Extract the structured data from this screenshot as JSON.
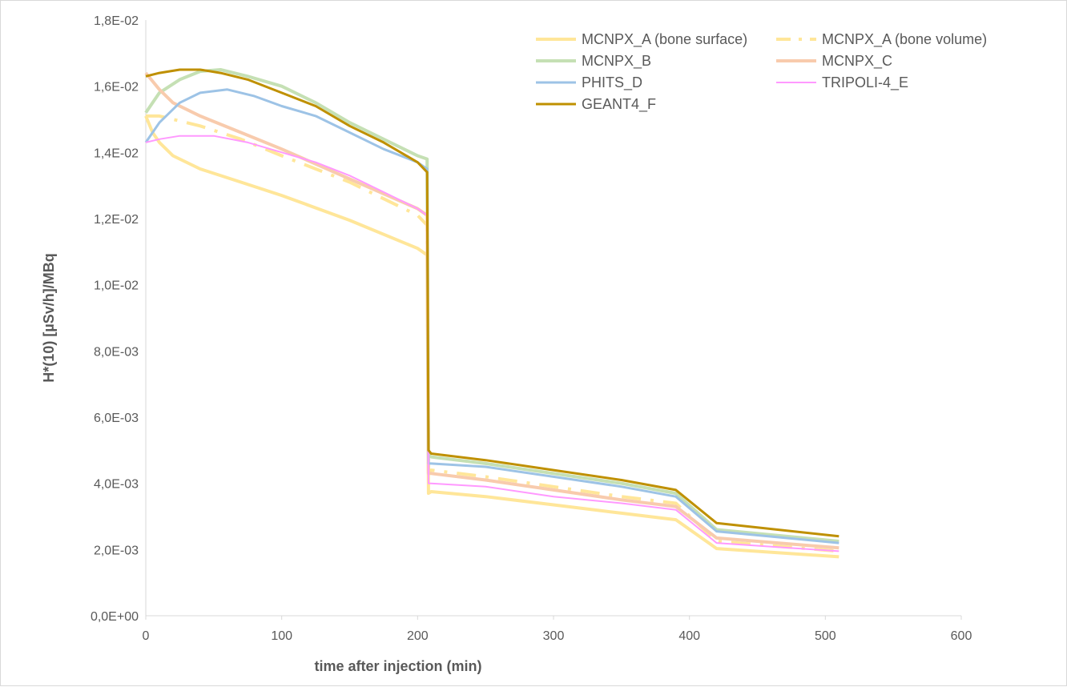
{
  "chart_data": {
    "type": "line",
    "xlabel": "time after injection (min)",
    "ylabel": "H*(10)  [µSv/h]/MBq",
    "xlim": [
      0,
      600
    ],
    "ylim": [
      0,
      0.018
    ],
    "x_ticks": [
      0,
      100,
      200,
      300,
      400,
      500,
      600
    ],
    "x_tick_labels": [
      "0",
      "100",
      "200",
      "300",
      "400",
      "500",
      "600"
    ],
    "y_ticks": [
      0,
      0.002,
      0.004,
      0.006,
      0.008,
      0.01,
      0.012,
      0.014,
      0.016,
      0.018
    ],
    "y_tick_labels": [
      "0,0E+00",
      "2,0E-03",
      "4,0E-03",
      "6,0E-03",
      "8,0E-03",
      "1,0E-02",
      "1,2E-02",
      "1,4E-02",
      "1,6E-02",
      "1,8E-02"
    ],
    "grid": false,
    "legend_position": "top-right",
    "series": [
      {
        "name": "MCNPX_A (bone surface)",
        "color": "#ffe699",
        "dash": "solid",
        "width": 4,
        "points": [
          [
            0,
            0.0151
          ],
          [
            5,
            0.0146
          ],
          [
            10,
            0.0143
          ],
          [
            20,
            0.0139
          ],
          [
            40,
            0.0135
          ],
          [
            70,
            0.0131
          ],
          [
            100,
            0.0127
          ],
          [
            150,
            0.01195
          ],
          [
            200,
            0.0111
          ],
          [
            207,
            0.0109
          ],
          [
            208,
            0.0037
          ],
          [
            210,
            0.00375
          ],
          [
            250,
            0.0036
          ],
          [
            300,
            0.00335
          ],
          [
            350,
            0.0031
          ],
          [
            390,
            0.0029
          ],
          [
            420,
            0.00203
          ],
          [
            510,
            0.00178
          ]
        ]
      },
      {
        "name": "MCNPX_A (bone volume)",
        "color": "#ffe699",
        "dash": "dashdot",
        "width": 4,
        "points": [
          [
            0,
            0.0151
          ],
          [
            10,
            0.0151
          ],
          [
            20,
            0.015
          ],
          [
            40,
            0.0148
          ],
          [
            70,
            0.0144
          ],
          [
            100,
            0.0139
          ],
          [
            150,
            0.0131
          ],
          [
            200,
            0.0121
          ],
          [
            207,
            0.0118
          ],
          [
            208,
            0.0043
          ],
          [
            210,
            0.0044
          ],
          [
            250,
            0.0042
          ],
          [
            300,
            0.0039
          ],
          [
            350,
            0.0036
          ],
          [
            390,
            0.0034
          ],
          [
            420,
            0.00225
          ],
          [
            510,
            0.00195
          ]
        ]
      },
      {
        "name": "MCNPX_B",
        "color": "#c5e0b4",
        "dash": "solid",
        "width": 4,
        "points": [
          [
            0,
            0.0152
          ],
          [
            10,
            0.0158
          ],
          [
            25,
            0.0162
          ],
          [
            40,
            0.01645
          ],
          [
            55,
            0.0165
          ],
          [
            75,
            0.0163
          ],
          [
            100,
            0.016
          ],
          [
            125,
            0.0155
          ],
          [
            150,
            0.0149
          ],
          [
            175,
            0.0144
          ],
          [
            200,
            0.0139
          ],
          [
            207,
            0.0138
          ],
          [
            208,
            0.00485
          ],
          [
            210,
            0.0048
          ],
          [
            250,
            0.0046
          ],
          [
            300,
            0.0043
          ],
          [
            350,
            0.004
          ],
          [
            390,
            0.0037
          ],
          [
            420,
            0.0026
          ],
          [
            510,
            0.00225
          ]
        ]
      },
      {
        "name": "MCNPX_C",
        "color": "#f8cbad",
        "dash": "solid",
        "width": 4,
        "points": [
          [
            0,
            0.0164
          ],
          [
            10,
            0.0159
          ],
          [
            20,
            0.0155
          ],
          [
            40,
            0.0151
          ],
          [
            70,
            0.0146
          ],
          [
            100,
            0.0141
          ],
          [
            150,
            0.0132
          ],
          [
            200,
            0.0123
          ],
          [
            207,
            0.0121
          ],
          [
            208,
            0.0043
          ],
          [
            210,
            0.0043
          ],
          [
            250,
            0.0041
          ],
          [
            300,
            0.0038
          ],
          [
            350,
            0.0035
          ],
          [
            390,
            0.0033
          ],
          [
            420,
            0.00235
          ],
          [
            510,
            0.00205
          ]
        ]
      },
      {
        "name": "PHITS_D",
        "color": "#9dc3e6",
        "dash": "solid",
        "width": 3,
        "points": [
          [
            0,
            0.0143
          ],
          [
            10,
            0.0149
          ],
          [
            25,
            0.0155
          ],
          [
            40,
            0.0158
          ],
          [
            60,
            0.0159
          ],
          [
            80,
            0.0157
          ],
          [
            100,
            0.0154
          ],
          [
            125,
            0.0151
          ],
          [
            150,
            0.0146
          ],
          [
            175,
            0.0141
          ],
          [
            200,
            0.0137
          ],
          [
            207,
            0.0135
          ],
          [
            208,
            0.0046
          ],
          [
            210,
            0.0046
          ],
          [
            250,
            0.0045
          ],
          [
            300,
            0.0042
          ],
          [
            350,
            0.0039
          ],
          [
            390,
            0.0036
          ],
          [
            420,
            0.00255
          ],
          [
            510,
            0.0022
          ]
        ]
      },
      {
        "name": "TRIPOLI-4_E",
        "color": "#ff99ff",
        "dash": "solid",
        "width": 2,
        "points": [
          [
            0,
            0.0143
          ],
          [
            10,
            0.0144
          ],
          [
            25,
            0.0145
          ],
          [
            50,
            0.0145
          ],
          [
            75,
            0.0143
          ],
          [
            100,
            0.014
          ],
          [
            125,
            0.0137
          ],
          [
            150,
            0.0133
          ],
          [
            175,
            0.0128
          ],
          [
            200,
            0.0123
          ],
          [
            207,
            0.0121
          ],
          [
            208,
            0.004
          ],
          [
            210,
            0.004
          ],
          [
            250,
            0.0039
          ],
          [
            300,
            0.0036
          ],
          [
            350,
            0.0034
          ],
          [
            390,
            0.0032
          ],
          [
            420,
            0.0022
          ],
          [
            510,
            0.00195
          ]
        ]
      },
      {
        "name": "GEANT4_F",
        "color": "#bf9000",
        "dash": "solid",
        "width": 3,
        "points": [
          [
            0,
            0.0163
          ],
          [
            10,
            0.0164
          ],
          [
            25,
            0.0165
          ],
          [
            40,
            0.0165
          ],
          [
            55,
            0.0164
          ],
          [
            75,
            0.0162
          ],
          [
            100,
            0.0158
          ],
          [
            125,
            0.0154
          ],
          [
            150,
            0.0148
          ],
          [
            175,
            0.0143
          ],
          [
            200,
            0.0137
          ],
          [
            207,
            0.0134
          ],
          [
            208,
            0.005
          ],
          [
            210,
            0.0049
          ],
          [
            250,
            0.0047
          ],
          [
            300,
            0.0044
          ],
          [
            350,
            0.0041
          ],
          [
            390,
            0.0038
          ],
          [
            420,
            0.0028
          ],
          [
            510,
            0.0024
          ]
        ]
      }
    ]
  }
}
